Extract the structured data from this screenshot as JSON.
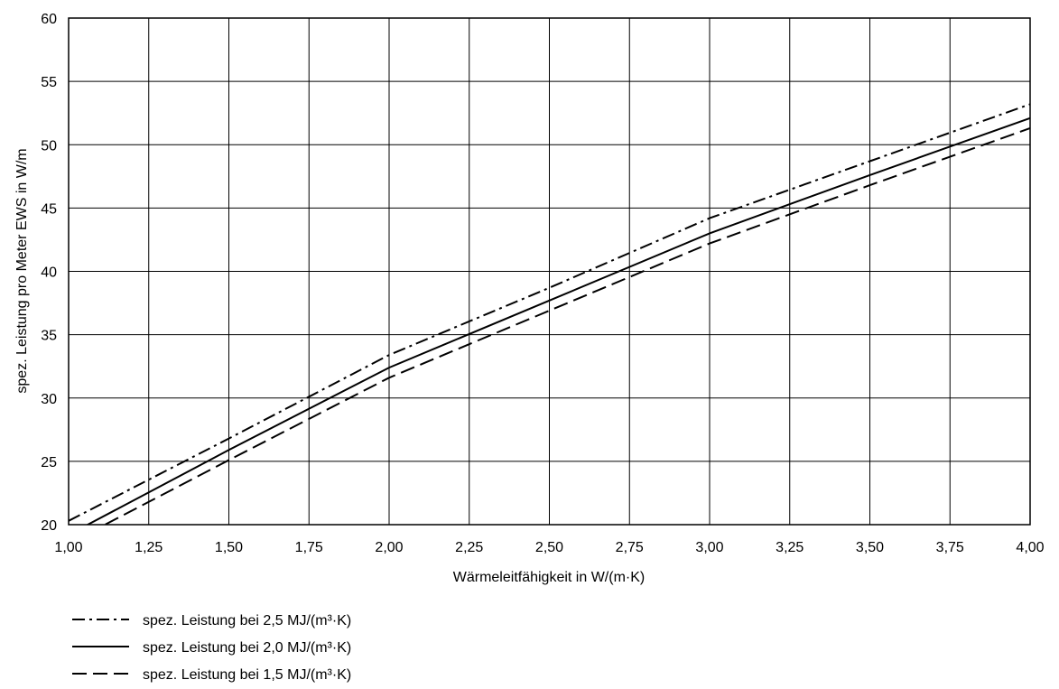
{
  "chart_data": {
    "type": "line",
    "title": "",
    "xlabel": "Wärmeleitfähigkeit in W/(m·K)",
    "ylabel": "spez. Leistung pro Meter EWS in W/m",
    "xlim": [
      1.0,
      4.0
    ],
    "ylim": [
      20,
      60
    ],
    "grid": true,
    "x_ticks": [
      1.0,
      1.25,
      1.5,
      1.75,
      2.0,
      2.25,
      2.5,
      2.75,
      3.0,
      3.25,
      3.5,
      3.75,
      4.0
    ],
    "x_tick_labels": [
      "1,00",
      "1,25",
      "1,50",
      "1,75",
      "2,00",
      "2,25",
      "2,50",
      "2,75",
      "3,00",
      "3,25",
      "3,50",
      "3,75",
      "4,00"
    ],
    "y_ticks": [
      20,
      25,
      30,
      35,
      40,
      45,
      50,
      55,
      60
    ],
    "y_tick_labels": [
      "20",
      "25",
      "30",
      "35",
      "40",
      "45",
      "50",
      "55",
      "60"
    ],
    "legend_position": "bottom-left",
    "series": [
      {
        "name": "spez. Leistung bei 2,5 MJ/(m³·K)",
        "style": "dash-dot",
        "color": "#000000",
        "points": [
          [
            1.0,
            20.3
          ],
          [
            1.5,
            26.8
          ],
          [
            2.0,
            33.4
          ],
          [
            2.5,
            38.7
          ],
          [
            3.0,
            44.2
          ],
          [
            3.5,
            48.7
          ],
          [
            4.0,
            53.2
          ]
        ]
      },
      {
        "name": "spez. Leistung bei 2,0 MJ/(m³·K)",
        "style": "solid",
        "color": "#000000",
        "points": [
          [
            1.0,
            19.2
          ],
          [
            1.5,
            25.9
          ],
          [
            2.0,
            32.4
          ],
          [
            2.5,
            37.7
          ],
          [
            3.0,
            43.0
          ],
          [
            3.5,
            47.6
          ],
          [
            4.0,
            52.1
          ]
        ]
      },
      {
        "name": "spez. Leistung bei 1,5 MJ/(m³·K)",
        "style": "dashed",
        "color": "#000000",
        "points": [
          [
            1.0,
            18.5
          ],
          [
            1.5,
            25.1
          ],
          [
            2.0,
            31.6
          ],
          [
            2.5,
            36.9
          ],
          [
            3.0,
            42.2
          ],
          [
            3.5,
            46.8
          ],
          [
            4.0,
            51.3
          ]
        ]
      }
    ]
  }
}
